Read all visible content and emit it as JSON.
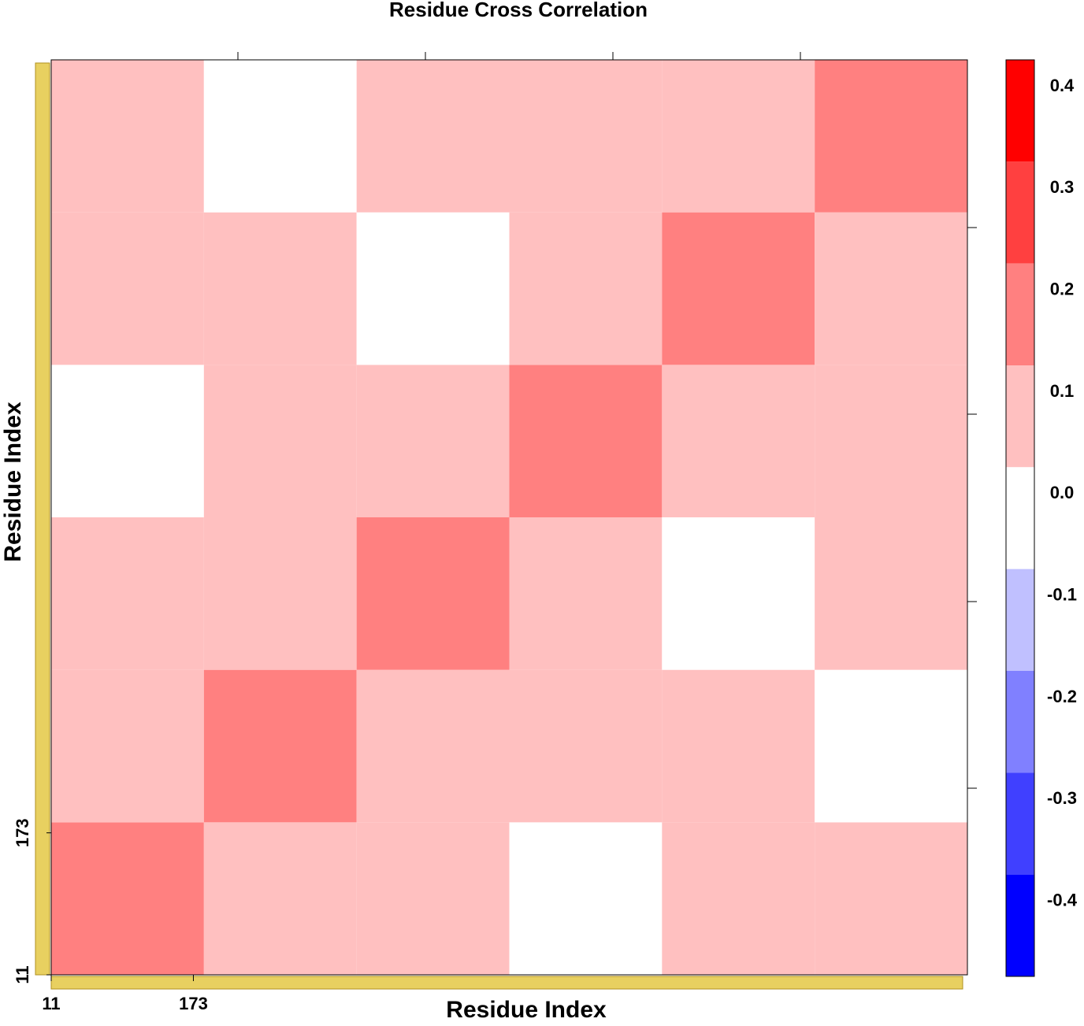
{
  "chart_data": {
    "type": "heatmap",
    "title": "Residue Cross Correlation",
    "x_label": "Residue Index",
    "y_label": "Residue Index",
    "xlim": [
      11,
      1055
    ],
    "ylim": [
      11,
      1055
    ],
    "xticks": [
      11,
      173
    ],
    "yticks": [
      11,
      173
    ],
    "xbins": [
      11,
      185,
      359,
      533,
      707,
      881,
      1055
    ],
    "ybins": [
      11,
      185,
      359,
      533,
      707,
      881,
      1055
    ],
    "values": [
      [
        0.2,
        0.05,
        0.05,
        -0.05,
        0.1,
        0.05
      ],
      [
        0.05,
        0.2,
        0.05,
        0.1,
        0.05,
        -0.05
      ],
      [
        0.05,
        0.05,
        0.2,
        0.05,
        -0.05,
        0.1
      ],
      [
        -0.05,
        0.1,
        0.05,
        0.2,
        0.05,
        0.05
      ],
      [
        0.1,
        0.05,
        -0.05,
        0.05,
        0.2,
        0.05
      ],
      [
        0.05,
        -0.05,
        0.1,
        0.05,
        0.05,
        0.2
      ]
    ],
    "colorbar": {
      "ticks": [
        0.4,
        0.3,
        0.2,
        0.1,
        {
          "value": 0,
          "label": "0.0"
        },
        -0.1,
        -0.2,
        -0.3,
        -0.4
      ],
      "colors": [
        "#ff0000",
        "#ff4040",
        "#ff8080",
        "#ffc0c0",
        "#ffffff",
        "#c0c0ff",
        "#8080ff",
        "#4040ff",
        "#0000ff"
      ]
    }
  }
}
